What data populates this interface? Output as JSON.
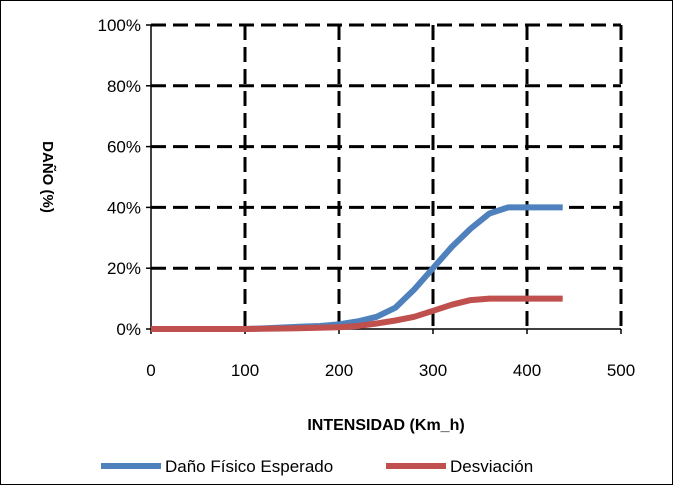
{
  "chart_data": {
    "type": "line",
    "title": "",
    "xlabel": "INTENSIDAD (Km_h)",
    "ylabel": "DAÑO (%)",
    "xlim": [
      0,
      500
    ],
    "ylim": [
      0,
      1.0
    ],
    "x_ticks": [
      "0",
      "100",
      "200",
      "300",
      "400",
      "500"
    ],
    "y_ticks": [
      "0%",
      "20%",
      "40%",
      "60%",
      "80%",
      "100%"
    ],
    "grid": true,
    "legend_position": "bottom",
    "series": [
      {
        "name": "Daño Físico Esperado",
        "color": "#4F81BD",
        "points": [
          [
            0,
            0
          ],
          [
            100,
            0
          ],
          [
            120,
            0.002
          ],
          [
            140,
            0.005
          ],
          [
            160,
            0.008
          ],
          [
            180,
            0.01
          ],
          [
            200,
            0.015
          ],
          [
            220,
            0.025
          ],
          [
            240,
            0.04
          ],
          [
            260,
            0.07
          ],
          [
            280,
            0.13
          ],
          [
            300,
            0.2
          ],
          [
            320,
            0.27
          ],
          [
            340,
            0.33
          ],
          [
            360,
            0.38
          ],
          [
            380,
            0.4
          ],
          [
            400,
            0.4
          ],
          [
            420,
            0.4
          ],
          [
            438,
            0.4
          ]
        ]
      },
      {
        "name": "Desviación",
        "color": "#C0504D",
        "points": [
          [
            0,
            0
          ],
          [
            100,
            0
          ],
          [
            150,
            0.002
          ],
          [
            200,
            0.006
          ],
          [
            220,
            0.01
          ],
          [
            240,
            0.018
          ],
          [
            260,
            0.028
          ],
          [
            280,
            0.04
          ],
          [
            300,
            0.06
          ],
          [
            320,
            0.08
          ],
          [
            340,
            0.095
          ],
          [
            360,
            0.1
          ],
          [
            380,
            0.1
          ],
          [
            400,
            0.1
          ],
          [
            420,
            0.1
          ],
          [
            438,
            0.1
          ]
        ]
      }
    ]
  }
}
